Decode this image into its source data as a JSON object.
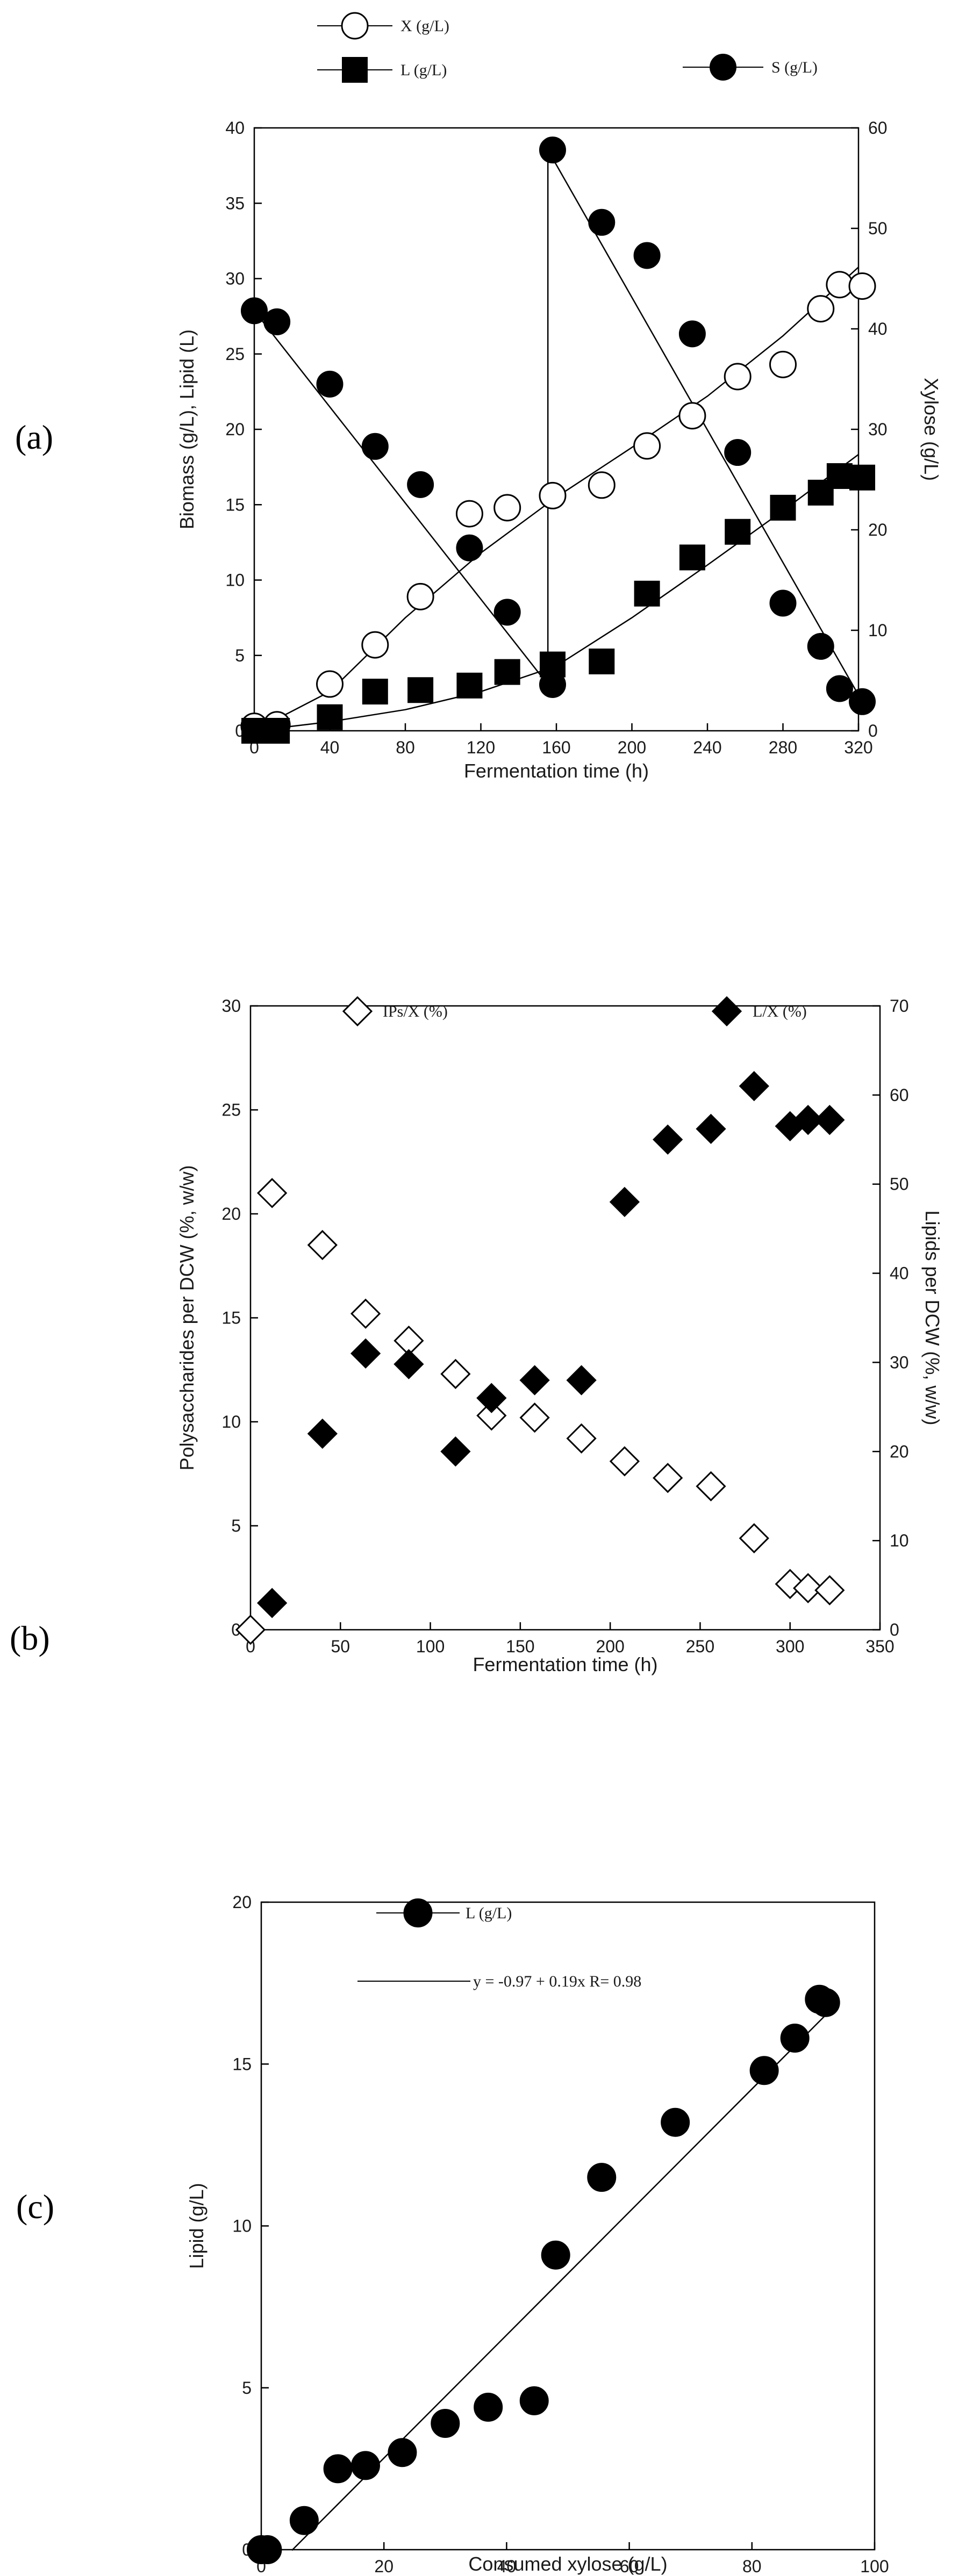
{
  "colors": {
    "ink": "#000000",
    "open_fill": "#ffffff"
  },
  "chart_data": [
    {
      "id": "a",
      "panel_label": "(a)",
      "type": "line",
      "xlabel": "Fermentation time (h)",
      "ylabel": "Biomass (g/L), Lipid (L)",
      "y2label": "Xylose (g/L)",
      "xlim": [
        0,
        320
      ],
      "xticks": [
        0,
        40,
        80,
        120,
        160,
        200,
        240,
        280,
        320
      ],
      "ylim": [
        0,
        40
      ],
      "yticks": [
        0,
        5,
        10,
        15,
        20,
        25,
        30,
        35,
        40
      ],
      "y2lim": [
        0,
        60
      ],
      "y2ticks": [
        0,
        10,
        20,
        30,
        40,
        50,
        60
      ],
      "series": [
        {
          "name": "X (g/L)",
          "marker": "circle-open",
          "axis": "left",
          "x": [
            0,
            12,
            40,
            64,
            88,
            114,
            134,
            158,
            184,
            208,
            232,
            256,
            280,
            300,
            310,
            322
          ],
          "y": [
            0.3,
            0.4,
            3.1,
            5.7,
            8.9,
            14.4,
            14.8,
            15.6,
            16.3,
            18.9,
            20.9,
            23.5,
            24.3,
            28.0,
            29.6,
            29.5
          ]
        },
        {
          "name": "L (g/L)",
          "marker": "square-filled",
          "axis": "left",
          "x": [
            0,
            12,
            40,
            64,
            88,
            114,
            134,
            158,
            184,
            208,
            232,
            256,
            280,
            300,
            310,
            322
          ],
          "y": [
            0,
            0,
            0.9,
            2.6,
            2.7,
            3.0,
            3.9,
            4.4,
            4.6,
            9.1,
            11.5,
            13.2,
            14.8,
            15.8,
            16.9,
            16.8
          ]
        },
        {
          "name": "S (g/L)",
          "marker": "circle-filled",
          "axis": "right",
          "x": [
            0,
            12,
            40,
            64,
            88,
            114,
            134,
            158,
            158,
            184,
            208,
            232,
            256,
            280,
            300,
            310,
            322
          ],
          "y": [
            41.8,
            40.7,
            34.5,
            28.3,
            24.5,
            18.2,
            11.8,
            4.6,
            57.8,
            50.6,
            47.3,
            39.5,
            27.7,
            12.7,
            8.4,
            4.2,
            2.9
          ]
        }
      ],
      "fits": [
        {
          "series": "X (g/L)",
          "axis": "left",
          "x": [
            0,
            40,
            80,
            120,
            160,
            200,
            240,
            280,
            330
          ],
          "y": [
            0,
            2.6,
            7.5,
            11.8,
            15.5,
            18.8,
            22.2,
            26.2,
            31.9
          ]
        },
        {
          "series": "L (g/L)",
          "axis": "left",
          "x": [
            0,
            40,
            80,
            120,
            160,
            200,
            240,
            280,
            325
          ],
          "y": [
            0,
            0.6,
            1.4,
            2.6,
            4.3,
            7.5,
            11.0,
            14.6,
            18.8
          ]
        },
        {
          "series": "S (g/L)",
          "axis": "right",
          "x": [
            0,
            155.5,
            155.5,
            322
          ],
          "y": [
            41.8,
            4.6,
            57.8,
            2.9
          ]
        }
      ]
    },
    {
      "id": "b",
      "panel_label": "(b)",
      "type": "scatter",
      "xlabel": "Fermentation time (h)",
      "ylabel": "Polysaccharides per DCW (%, w/w)",
      "y2label": "Lipids per DCW (%, w/w)",
      "xlim": [
        0,
        350
      ],
      "xticks": [
        0,
        50,
        100,
        150,
        200,
        250,
        300,
        350
      ],
      "ylim": [
        0,
        30
      ],
      "yticks": [
        0,
        5,
        10,
        15,
        20,
        25,
        30
      ],
      "y2lim": [
        0,
        70
      ],
      "y2ticks": [
        0,
        10,
        20,
        30,
        40,
        50,
        60,
        70
      ],
      "series": [
        {
          "name": "IPs/X (%)",
          "marker": "diamond-open",
          "axis": "left",
          "x": [
            0,
            12,
            40,
            64,
            88,
            114,
            134,
            158,
            184,
            208,
            232,
            256,
            280,
            300,
            310,
            322
          ],
          "y": [
            0,
            21.0,
            18.5,
            15.2,
            13.9,
            12.3,
            10.3,
            10.2,
            9.2,
            8.1,
            7.3,
            6.9,
            4.4,
            2.2,
            2.0,
            1.9
          ]
        },
        {
          "name": "L/X (%)",
          "marker": "diamond-filled",
          "axis": "right",
          "x": [
            12,
            40,
            64,
            88,
            114,
            134,
            158,
            184,
            208,
            232,
            256,
            280,
            300,
            310,
            322
          ],
          "y": [
            3.0,
            22.0,
            31.0,
            29.8,
            20.0,
            26.0,
            28.0,
            28.0,
            48.0,
            55.0,
            56.2,
            61.0,
            56.5,
            57.2,
            57.2
          ]
        }
      ]
    },
    {
      "id": "c",
      "panel_label": "(c)",
      "type": "scatter",
      "xlabel": "Consumed xylose (g/L)",
      "ylabel": "Lipid (g/L)",
      "xlim": [
        0,
        100
      ],
      "xticks": [
        0,
        20,
        40,
        60,
        80,
        100
      ],
      "ylim": [
        0,
        20
      ],
      "yticks": [
        0,
        5,
        10,
        15,
        20
      ],
      "series": [
        {
          "name": "L (g/L)",
          "marker": "circle-filled",
          "x": [
            0,
            1,
            7,
            12.5,
            17,
            23,
            30,
            37,
            44.5,
            48,
            55.5,
            67.5,
            82,
            87,
            91,
            92
          ],
          "y": [
            0,
            0,
            0.9,
            2.5,
            2.6,
            3.0,
            3.9,
            4.4,
            4.6,
            9.1,
            11.5,
            13.2,
            14.8,
            15.8,
            17.0,
            16.9
          ]
        }
      ],
      "fit": {
        "label": "y = -0.97 + 0.19x   R= 0.98",
        "intercept": -0.97,
        "slope": 0.19,
        "x_range": [
          5,
          92
        ]
      }
    }
  ]
}
